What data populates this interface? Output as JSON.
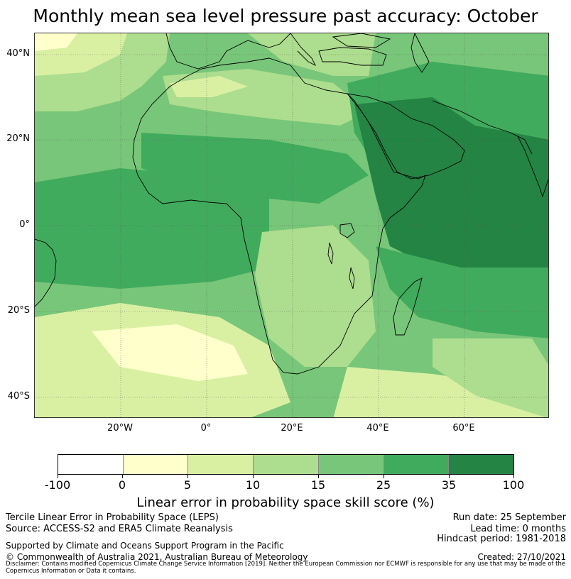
{
  "title": "Monthly mean sea level pressure past accuracy: October",
  "map": {
    "lat_labels": [
      "40°N",
      "20°N",
      "0°",
      "20°S",
      "40°S"
    ],
    "lon_labels": [
      "20°W",
      "0°",
      "20°E",
      "40°E",
      "60°E"
    ],
    "colors": {
      "class_0_5": "#ffffcc",
      "class_5_10": "#d9f0a3",
      "class_10_15": "#addd8e",
      "class_15_25": "#78c679",
      "class_25_35": "#41ab5d",
      "class_35_100": "#238443",
      "coastline": "#000000",
      "grid": "#555555"
    }
  },
  "colorbar": {
    "ticks": [
      "-100",
      "0",
      "5",
      "10",
      "15",
      "25",
      "35",
      "100"
    ],
    "colors": [
      "#ffffff",
      "#ffffcc",
      "#d9f0a3",
      "#addd8e",
      "#78c679",
      "#41ab5d",
      "#238443"
    ],
    "label": "Linear error in probability space skill score (%)"
  },
  "footer": {
    "left": {
      "line1": "Tercile Linear Error in Probability Space (LEPS)",
      "line2": "Source: ACCESS-S2 and ERA5 Climate Reanalysis",
      "line3": "Supported by Climate and Oceans Support Program in the Pacific",
      "line4": "© Commonwealth of Australia 2021, Australian Bureau of Meteorology"
    },
    "right": {
      "run_date": "Run date: 25 September",
      "lead_time": "Lead time: 0 months",
      "hindcast": "Hindcast period: 1981-2018",
      "created": "Created: 27/10/2021"
    },
    "disclaimer": "Disclaimer: Contains modified Copernicus Climate Change Service Information [2019]. Neither the European Commission nor ECMWF is responsible for any use that may be made of the Copernicus Information or Data it contains."
  }
}
